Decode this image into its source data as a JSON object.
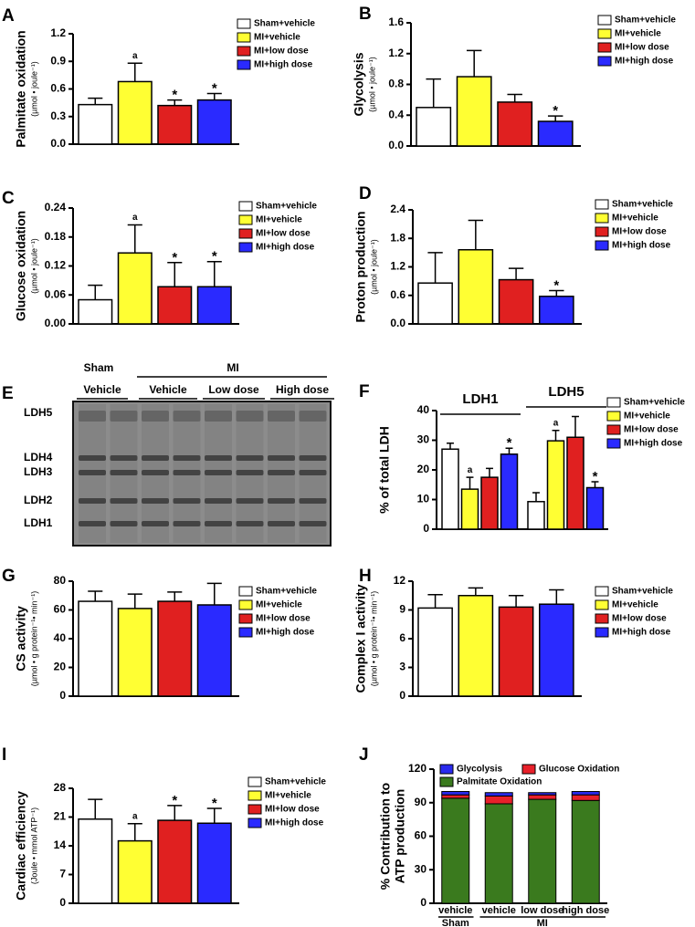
{
  "chart_data": [
    {
      "panel": "A",
      "type": "bar",
      "ylabel": "Palmitate oxidation",
      "yunit": "(µmol • joule⁻¹)",
      "ylim": [
        0,
        1.2
      ],
      "yticks": [
        {
          "value": 0,
          "label": "0.0"
        },
        0.3,
        0.6,
        0.9,
        1.2
      ],
      "series": [
        {
          "name": "Sham+vehicle",
          "color": "#ffffff",
          "values": [
            0.43
          ],
          "errors": [
            0.07
          ],
          "annotations": [
            null
          ]
        },
        {
          "name": "MI+vehicle",
          "color": "#ffff33",
          "values": [
            0.68
          ],
          "errors": [
            0.2
          ],
          "annotations": [
            "a"
          ]
        },
        {
          "name": "MI+low dose",
          "color": "#e02020",
          "values": [
            0.42
          ],
          "errors": [
            0.06
          ],
          "annotations": [
            "*"
          ]
        },
        {
          "name": "MI+high dose",
          "color": "#2a2aff",
          "values": [
            0.48
          ],
          "errors": [
            0.07
          ],
          "annotations": [
            "*"
          ]
        }
      ]
    },
    {
      "panel": "B",
      "type": "bar",
      "ylabel": "Glycolysis",
      "yunit": "(µmol • joule⁻¹)",
      "ylim": [
        0,
        1.6
      ],
      "yticks": [
        {
          "value": 0,
          "label": "0.0"
        },
        0.4,
        0.8,
        1.2,
        1.6
      ],
      "series": [
        {
          "name": "Sham+vehicle",
          "color": "#ffffff",
          "values": [
            0.5
          ],
          "errors": [
            0.37
          ],
          "annotations": [
            null
          ]
        },
        {
          "name": "MI+vehicle",
          "color": "#ffff33",
          "values": [
            0.9
          ],
          "errors": [
            0.34
          ],
          "annotations": [
            null
          ]
        },
        {
          "name": "MI+low dose",
          "color": "#e02020",
          "values": [
            0.57
          ],
          "errors": [
            0.1
          ],
          "annotations": [
            null
          ]
        },
        {
          "name": "MI+high dose",
          "color": "#2a2aff",
          "values": [
            0.32
          ],
          "errors": [
            0.07
          ],
          "annotations": [
            "*"
          ]
        }
      ]
    },
    {
      "panel": "C",
      "type": "bar",
      "ylabel": "Glucose oxidation",
      "yunit": "(µmol • joule⁻¹)",
      "ylim": [
        0,
        0.24
      ],
      "yticks": [
        {
          "value": 0,
          "label": "0.00"
        },
        0.06,
        0.12,
        0.18,
        0.24
      ],
      "series": [
        {
          "name": "Sham+vehicle",
          "color": "#ffffff",
          "values": [
            0.05
          ],
          "errors": [
            0.03
          ],
          "annotations": [
            null
          ]
        },
        {
          "name": "MI+vehicle",
          "color": "#ffff33",
          "values": [
            0.147
          ],
          "errors": [
            0.058
          ],
          "annotations": [
            "a"
          ]
        },
        {
          "name": "MI+low dose",
          "color": "#e02020",
          "values": [
            0.077
          ],
          "errors": [
            0.05
          ],
          "annotations": [
            "*"
          ]
        },
        {
          "name": "MI+high dose",
          "color": "#2a2aff",
          "values": [
            0.077
          ],
          "errors": [
            0.052
          ],
          "annotations": [
            "*"
          ]
        }
      ]
    },
    {
      "panel": "D",
      "type": "bar",
      "ylabel": "Proton production",
      "yunit": "(µmol • joule⁻¹)",
      "ylim": [
        0,
        2.4
      ],
      "yticks": [
        {
          "value": 0,
          "label": "0.0"
        },
        0.6,
        1.2,
        1.8,
        2.4
      ],
      "series": [
        {
          "name": "Sham+vehicle",
          "color": "#ffffff",
          "values": [
            0.86
          ],
          "errors": [
            0.64
          ],
          "annotations": [
            null
          ]
        },
        {
          "name": "MI+vehicle",
          "color": "#ffff33",
          "values": [
            1.56
          ],
          "errors": [
            0.62
          ],
          "annotations": [
            null
          ]
        },
        {
          "name": "MI+low dose",
          "color": "#e02020",
          "values": [
            0.93
          ],
          "errors": [
            0.24
          ],
          "annotations": [
            null
          ]
        },
        {
          "name": "MI+high dose",
          "color": "#2a2aff",
          "values": [
            0.58
          ],
          "errors": [
            0.12
          ],
          "annotations": [
            "*"
          ]
        }
      ]
    },
    {
      "panel": "F",
      "type": "bar",
      "ylabel": "% of total LDH",
      "ylim": [
        0,
        40
      ],
      "yticks": [
        0,
        10,
        20,
        30,
        40
      ],
      "categories": [
        "LDH1",
        "LDH5"
      ],
      "series": [
        {
          "name": "Sham+vehicle",
          "color": "#ffffff",
          "values": [
            27,
            9.3
          ],
          "errors": [
            2,
            3
          ],
          "annotations": [
            null,
            null
          ]
        },
        {
          "name": "MI+vehicle",
          "color": "#ffff33",
          "values": [
            13.5,
            29.8
          ],
          "errors": [
            4,
            3.5
          ],
          "annotations": [
            "a",
            "a"
          ]
        },
        {
          "name": "MI+low dose",
          "color": "#e02020",
          "values": [
            17.5,
            31
          ],
          "errors": [
            3,
            7
          ],
          "annotations": [
            null,
            null
          ]
        },
        {
          "name": "MI+high dose",
          "color": "#2a2aff",
          "values": [
            25.3,
            14
          ],
          "errors": [
            2,
            2
          ],
          "annotations": [
            "*",
            "*"
          ]
        }
      ]
    },
    {
      "panel": "G",
      "type": "bar",
      "ylabel": "CS activity",
      "yunit": "(µmol • g protein⁻¹• min⁻¹)",
      "ylim": [
        0,
        80
      ],
      "yticks": [
        0,
        20,
        40,
        60,
        80
      ],
      "series": [
        {
          "name": "Sham+vehicle",
          "color": "#ffffff",
          "values": [
            66
          ],
          "errors": [
            7
          ],
          "annotations": [
            null
          ]
        },
        {
          "name": "MI+vehicle",
          "color": "#ffff33",
          "values": [
            61
          ],
          "errors": [
            10
          ],
          "annotations": [
            null
          ]
        },
        {
          "name": "MI+low dose",
          "color": "#e02020",
          "values": [
            66
          ],
          "errors": [
            6.5
          ],
          "annotations": [
            null
          ]
        },
        {
          "name": "MI+high dose",
          "color": "#2a2aff",
          "values": [
            63.5
          ],
          "errors": [
            15
          ],
          "annotations": [
            null
          ]
        }
      ]
    },
    {
      "panel": "H",
      "type": "bar",
      "ylabel": "Complex I activity",
      "yunit": "(µmol • g protein⁻¹• min⁻¹)",
      "ylim": [
        0,
        12
      ],
      "yticks": [
        0,
        3,
        6,
        9,
        12
      ],
      "series": [
        {
          "name": "Sham+vehicle",
          "color": "#ffffff",
          "values": [
            9.2
          ],
          "errors": [
            1.4
          ],
          "annotations": [
            null
          ]
        },
        {
          "name": "MI+vehicle",
          "color": "#ffff33",
          "values": [
            10.5
          ],
          "errors": [
            0.8
          ],
          "annotations": [
            null
          ]
        },
        {
          "name": "MI+low dose",
          "color": "#e02020",
          "values": [
            9.3
          ],
          "errors": [
            1.2
          ],
          "annotations": [
            null
          ]
        },
        {
          "name": "MI+high dose",
          "color": "#2a2aff",
          "values": [
            9.6
          ],
          "errors": [
            1.5
          ],
          "annotations": [
            null
          ]
        }
      ]
    },
    {
      "panel": "I",
      "type": "bar",
      "ylabel": "Cardiac efficiency",
      "yunit": "(Joule • mmol ATP⁻¹)",
      "ylim": [
        0,
        28
      ],
      "yticks": [
        0,
        7,
        14,
        21,
        28
      ],
      "series": [
        {
          "name": "Sham+vehicle",
          "color": "#ffffff",
          "values": [
            20.5
          ],
          "errors": [
            4.8
          ],
          "annotations": [
            null
          ]
        },
        {
          "name": "MI+vehicle",
          "color": "#ffff33",
          "values": [
            15.2
          ],
          "errors": [
            4.2
          ],
          "annotations": [
            "a"
          ]
        },
        {
          "name": "MI+low dose",
          "color": "#e02020",
          "values": [
            20.2
          ],
          "errors": [
            3.6
          ],
          "annotations": [
            "*"
          ]
        },
        {
          "name": "MI+high dose",
          "color": "#2a2aff",
          "values": [
            19.5
          ],
          "errors": [
            3.6
          ],
          "annotations": [
            "*"
          ]
        }
      ]
    },
    {
      "panel": "J",
      "type": "stacked_bar",
      "ylabel": [
        "% Contribution to",
        "ATP production"
      ],
      "ylim": [
        0,
        120
      ],
      "yticks": [
        0,
        30,
        60,
        90,
        120
      ],
      "categories": [
        "vehicle",
        "vehicle",
        "low dose",
        "high dose"
      ],
      "groups": [
        "Sham",
        "MI"
      ],
      "series": [
        {
          "name": "Palmitate Oxidation",
          "color": "#3a7a1e",
          "values": [
            94,
            89,
            93,
            92
          ]
        },
        {
          "name": "Glucose Oxidation",
          "color": "#e8202a",
          "values": [
            3,
            7,
            4,
            5
          ]
        },
        {
          "name": "Glycolysis",
          "color": "#2a2aee",
          "values": [
            3,
            3,
            2,
            3
          ]
        }
      ]
    }
  ],
  "gel": {
    "panel": "E",
    "groups": [
      "Sham",
      "MI"
    ],
    "lanes": [
      "Vehicle",
      "Vehicle",
      "Low dose",
      "High dose"
    ],
    "bands": [
      "LDH5",
      "LDH4",
      "LDH3",
      "LDH2",
      "LDH1"
    ]
  }
}
